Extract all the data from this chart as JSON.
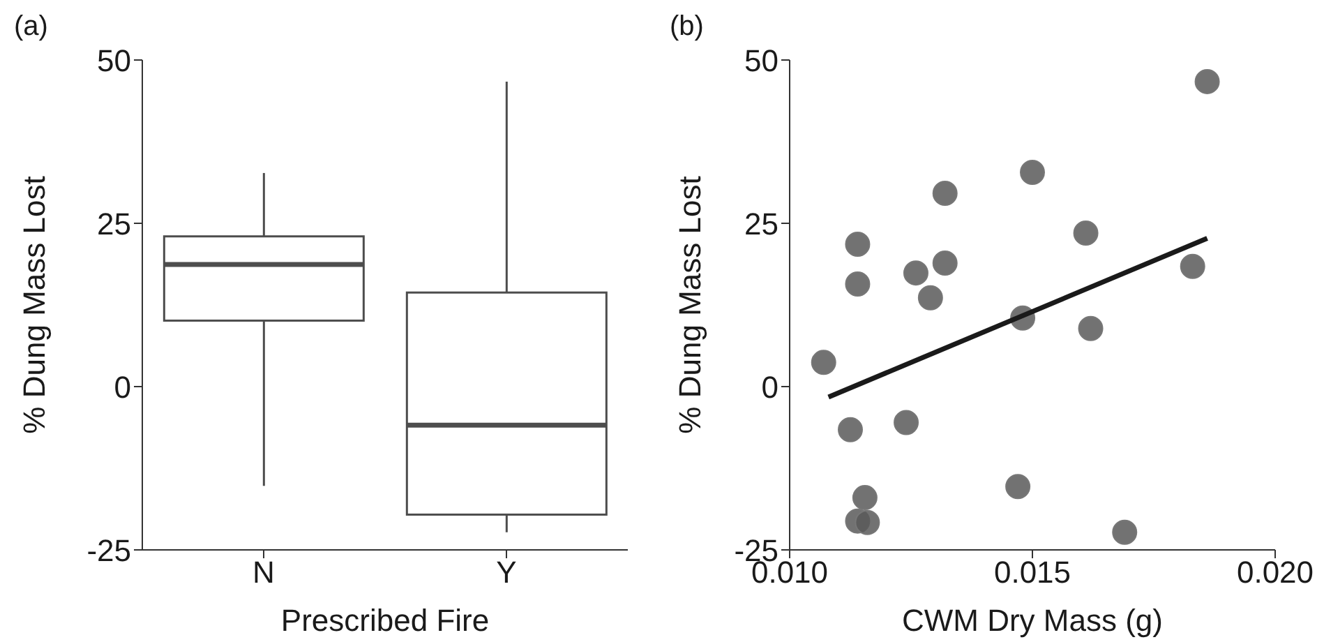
{
  "chart_data": [
    {
      "type": "box",
      "title": "(a)",
      "xlabel": "Prescribed Fire",
      "ylabel": "% Dung Mass Lost",
      "categories": [
        "N",
        "Y"
      ],
      "color": "#4d4d4d",
      "ylim": [
        -25,
        50
      ],
      "yticks": [
        -25,
        0,
        25,
        50
      ],
      "boxes": [
        {
          "low": -15.2,
          "q1": 10.1,
          "median": 18.7,
          "q3": 23,
          "high": 32.7
        },
        {
          "low": -22.3,
          "q1": -19.6,
          "median": -5.9,
          "q3": 14.4,
          "high": 46.7
        }
      ]
    },
    {
      "type": "scatter",
      "title": "(b)",
      "xlabel": "CWM Dry Mass (g)",
      "ylabel": "% Dung Mass Lost",
      "xlim": [
        0.01,
        0.02
      ],
      "xticks": [
        {
          "value": 0.01,
          "label": "0.010"
        },
        {
          "value": 0.015,
          "label": "0.015"
        },
        {
          "value": 0.02,
          "label": "0.020"
        }
      ],
      "ylim": [
        -25,
        50
      ],
      "yticks": [
        -25,
        0,
        25,
        50
      ],
      "series": [
        {
          "type": "scatter",
          "marker": "circle",
          "color": "#595959",
          "x": [
            0.0107,
            0.0114,
            0.0114,
            0.01125,
            0.01155,
            0.0114,
            0.0116,
            0.0126,
            0.0132,
            0.0129,
            0.0132,
            0.0124,
            0.0148,
            0.015,
            0.0147,
            0.0161,
            0.0162,
            0.0169,
            0.0183,
            0.0186
          ],
          "values": [
            3.7,
            21.8,
            15.7,
            -6.6,
            -17,
            -20.6,
            -20.8,
            17.4,
            18.9,
            13.6,
            29.6,
            -5.5,
            10.5,
            32.8,
            -15.3,
            23.5,
            8.9,
            -22.3,
            18.4,
            46.7
          ]
        },
        {
          "type": "line",
          "color": "#1a1a1a",
          "x": [
            0.0108,
            0.0186
          ],
          "values": [
            -1.6,
            22.7
          ]
        }
      ]
    }
  ]
}
